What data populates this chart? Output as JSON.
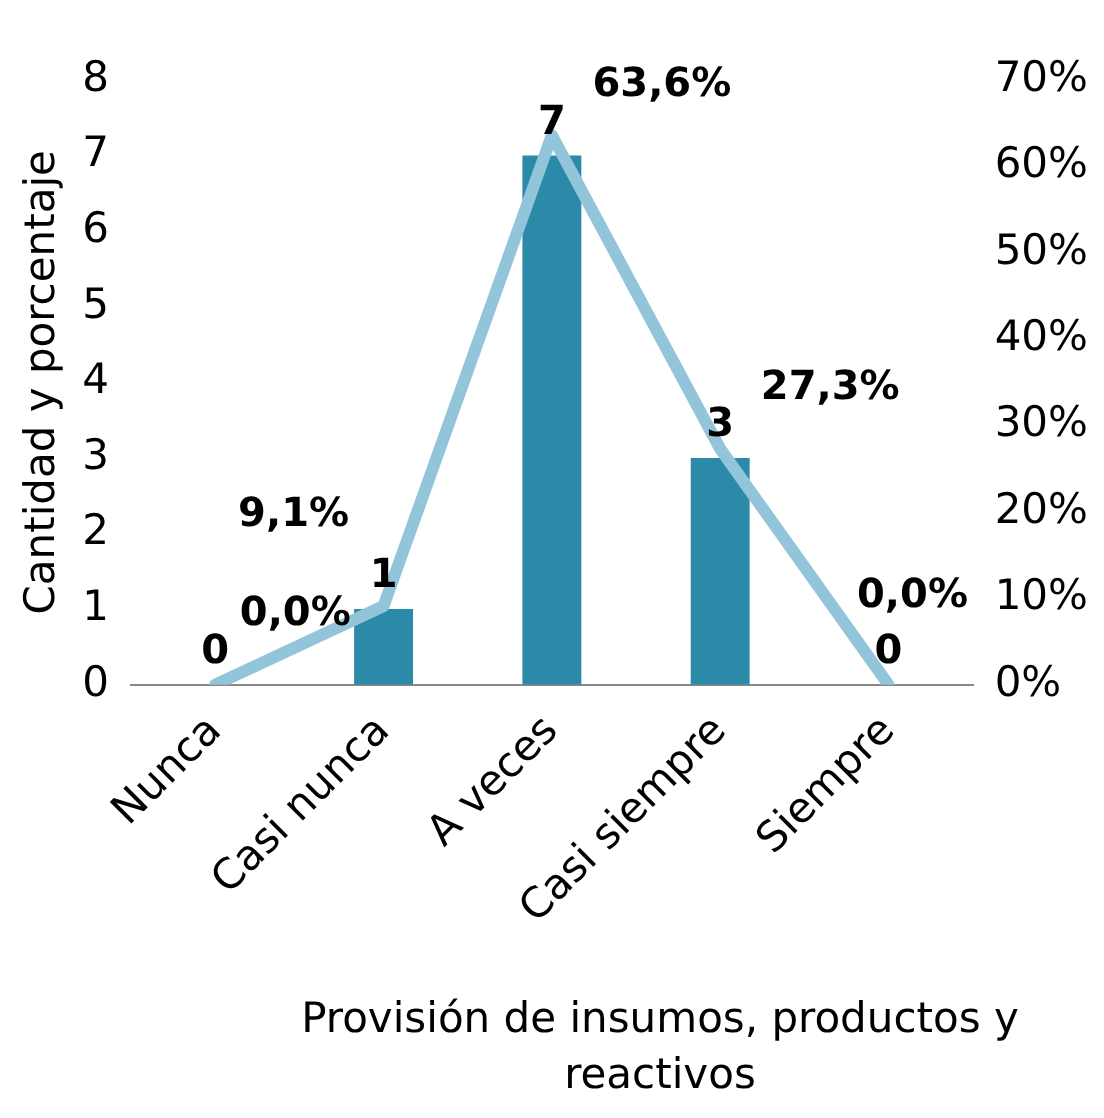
{
  "chart_data": {
    "type": "bar",
    "ylabel": "Cantidad y porcentaje",
    "xlabel": "Provisión de insumos, productos y reactivos",
    "categories": [
      "Nunca",
      "Casi nunca",
      "A veces",
      "Casi siempre",
      "Siempre"
    ],
    "series": [
      {
        "color": "#2a8aa8",
        "values": [
          0,
          1,
          7,
          3,
          0
        ],
        "value_labels": [
          "0",
          "1",
          "7",
          "3",
          "0"
        ]
      },
      {
        "type": "line",
        "axis": "y2",
        "color": "#92c5d9",
        "values": [
          0,
          9.1,
          63.6,
          27.3,
          0
        ],
        "value_labels": [
          "0,0%",
          "9,1%",
          "63,6%",
          "27,3%",
          "0,0%"
        ]
      }
    ],
    "ylim": [
      0,
      8
    ],
    "yticks": [
      0,
      1,
      2,
      3,
      4,
      5,
      6,
      7,
      8
    ],
    "y2lim": [
      0,
      70
    ],
    "y2ticks": [
      {
        "value": 0,
        "label": "0%"
      },
      {
        "value": 10,
        "label": "10%"
      },
      {
        "value": 20,
        "label": "20%"
      },
      {
        "value": 30,
        "label": "30%"
      },
      {
        "value": 40,
        "label": "40%"
      },
      {
        "value": 50,
        "label": "50%"
      },
      {
        "value": 60,
        "label": "60%"
      },
      {
        "value": 70,
        "label": "70%"
      }
    ],
    "grid": false,
    "legend": false,
    "marker": "none"
  }
}
